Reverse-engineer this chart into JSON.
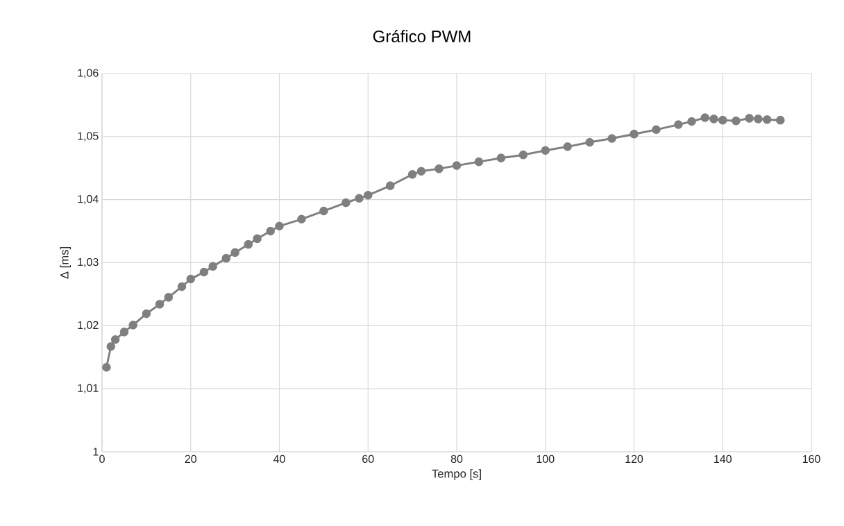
{
  "chart_data": {
    "type": "line",
    "title": "Gráfico PWM",
    "xlabel": "Tempo [s]",
    "ylabel": "Δ [ms]",
    "x": [
      1,
      2,
      3,
      5,
      7,
      10,
      13,
      15,
      18,
      20,
      23,
      25,
      28,
      30,
      33,
      35,
      38,
      40,
      45,
      50,
      55,
      58,
      60,
      65,
      70,
      72,
      76,
      80,
      85,
      90,
      95,
      100,
      105,
      110,
      115,
      120,
      125,
      130,
      133,
      136,
      138,
      140,
      143,
      146,
      148,
      150,
      153
    ],
    "values": [
      1.0134,
      1.0167,
      1.0178,
      1.019,
      1.0201,
      1.0219,
      1.0234,
      1.0245,
      1.0262,
      1.0274,
      1.0285,
      1.0294,
      1.0307,
      1.0316,
      1.0329,
      1.0338,
      1.035,
      1.0358,
      1.0369,
      1.0382,
      1.0395,
      1.0402,
      1.0407,
      1.0422,
      1.044,
      1.0445,
      1.0449,
      1.0454,
      1.046,
      1.0466,
      1.0471,
      1.0478,
      1.0484,
      1.0491,
      1.0497,
      1.0504,
      1.0511,
      1.0519,
      1.0524,
      1.053,
      1.0528,
      1.0526,
      1.0525,
      1.0529,
      1.0528,
      1.0527,
      1.0526
    ],
    "color": "#7f7f7f",
    "marker": "circle",
    "grid": true,
    "xlim": [
      0,
      160
    ],
    "xticks": [
      0,
      20,
      40,
      60,
      80,
      100,
      120,
      140,
      160
    ],
    "ylim": [
      1,
      1.06
    ],
    "yticks": [
      1,
      {
        "value": 1.01,
        "label": "1,01"
      },
      {
        "value": 1.02,
        "label": "1,02"
      },
      {
        "value": 1.03,
        "label": "1,03"
      },
      {
        "value": 1.04,
        "label": "1,04"
      },
      {
        "value": 1.05,
        "label": "1,05"
      },
      {
        "value": 1.06,
        "label": "1,06"
      }
    ]
  }
}
